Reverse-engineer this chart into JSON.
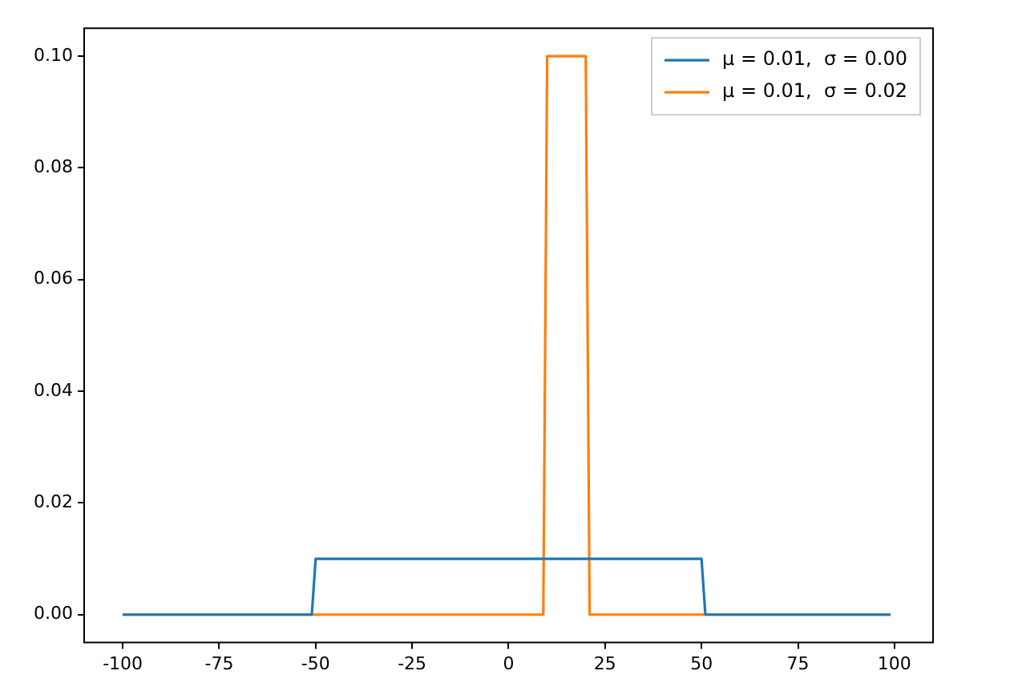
{
  "chart_data": {
    "type": "line",
    "xlim": [
      -110,
      110
    ],
    "xticks": [
      -100,
      -75,
      -50,
      -25,
      0,
      25,
      50,
      75,
      100
    ],
    "ylim": [
      -0.005,
      0.105
    ],
    "yticks": [
      {
        "value": 0,
        "label": "0.00"
      },
      {
        "value": 0.02,
        "label": "0.02"
      },
      {
        "value": 0.04,
        "label": "0.04"
      },
      {
        "value": 0.06,
        "label": "0.06"
      },
      {
        "value": 0.08,
        "label": "0.08"
      },
      {
        "value": 0.1,
        "label": "0.10"
      }
    ],
    "grid": false,
    "legend": "top right",
    "marker": "none",
    "line_style": "solid",
    "series": [
      {
        "name": "μ = 0.01,  σ = 0.00",
        "color": "#1f77b4",
        "x": [
          -100,
          -51,
          -50,
          50,
          51,
          99
        ],
        "values": [
          0,
          0,
          0.01,
          0.01,
          0,
          0
        ]
      },
      {
        "name": "μ = 0.01,  σ = 0.02",
        "color": "#ff7f0e",
        "x": [
          -100,
          9,
          10,
          20,
          21,
          99
        ],
        "values": [
          0,
          0,
          0.1,
          0.1,
          0,
          0
        ]
      }
    ]
  }
}
